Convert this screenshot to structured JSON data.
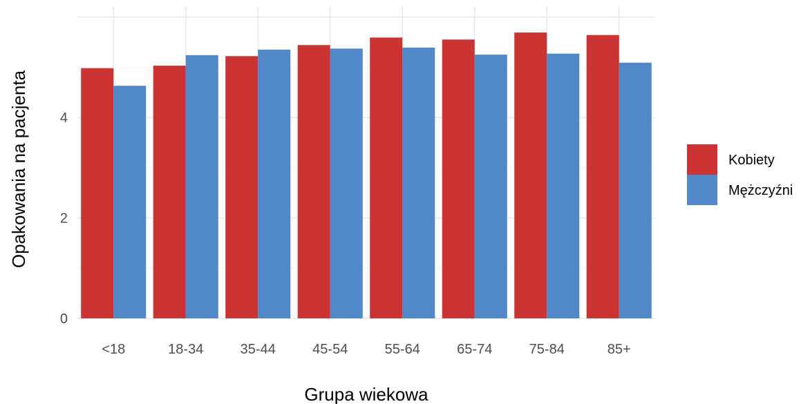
{
  "chart_data": {
    "type": "bar",
    "categories": [
      "<18",
      "18-34",
      "35-44",
      "45-54",
      "55-64",
      "65-74",
      "75-84",
      "85+"
    ],
    "series": [
      {
        "name": "Kobiety",
        "color": "#cc3333",
        "values": [
          4.98,
          5.03,
          5.22,
          5.44,
          5.59,
          5.55,
          5.69,
          5.64
        ]
      },
      {
        "name": "Mężczyźni",
        "color": "#5088c8",
        "values": [
          4.63,
          5.24,
          5.35,
          5.37,
          5.39,
          5.25,
          5.27,
          5.09
        ]
      }
    ],
    "xlabel": "Grupa wiekowa",
    "ylabel": "Opakowania na pacjenta",
    "ylim": [
      0,
      6.2
    ],
    "yticks": [
      0,
      2,
      4
    ],
    "grid": true,
    "legend_position": "right"
  }
}
